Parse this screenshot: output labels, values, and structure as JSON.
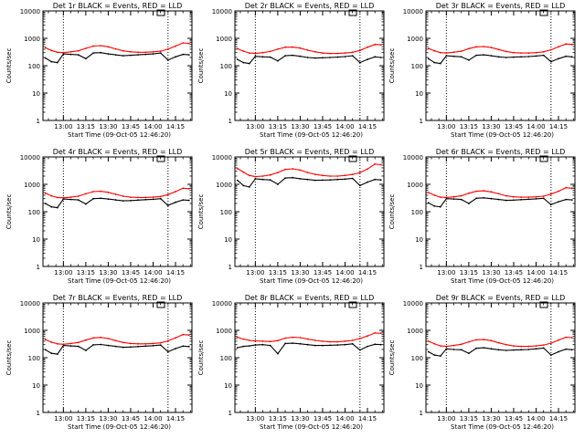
{
  "colors": {
    "background": "#ffffff",
    "events": "#000000",
    "lld": "#ff0000",
    "axes": "#000000"
  },
  "chart_data": [
    {
      "type": "line",
      "title": "Det 1r BLACK = Events, RED = LLD",
      "xlabel": "Start Time (09-Oct-05 12:46:20)",
      "ylabel": "Counts/sec",
      "x_ticks": [
        "13:00",
        "13:15",
        "13:30",
        "13:45",
        "14:00",
        "14:15"
      ],
      "y_ticks": [
        "1",
        "10",
        "100",
        "1000",
        "10000"
      ],
      "y_scale": "log",
      "ylim": [
        1,
        10000
      ],
      "xlim": [
        "12:46:20",
        "14:26:00"
      ],
      "dotted_vlines": [
        "13:00",
        "14:10"
      ],
      "x": [
        "12:48",
        "12:52",
        "12:56",
        "13:00",
        "13:05",
        "13:10",
        "13:15",
        "13:20",
        "13:25",
        "13:30",
        "13:35",
        "13:40",
        "13:45",
        "13:50",
        "13:55",
        "14:00",
        "14:05",
        "14:10",
        "14:15",
        "14:20",
        "14:24"
      ],
      "series": [
        {
          "name": "LLD",
          "values": [
            450,
            360,
            310,
            300,
            320,
            350,
            430,
            520,
            540,
            490,
            410,
            350,
            320,
            310,
            310,
            320,
            340,
            400,
            520,
            680,
            650
          ]
        },
        {
          "name": "Events",
          "values": [
            190,
            140,
            130,
            270,
            260,
            250,
            180,
            290,
            300,
            270,
            250,
            230,
            240,
            250,
            260,
            270,
            290,
            160,
            210,
            260,
            250
          ]
        }
      ]
    },
    {
      "type": "line",
      "title": "Det 2r BLACK = Events, RED = LLD",
      "xlabel": "Start Time (09-Oct-05 12:46:20)",
      "ylabel": "Counts/sec",
      "x_ticks": [
        "13:00",
        "13:15",
        "13:30",
        "13:45",
        "14:00",
        "14:15"
      ],
      "y_ticks": [
        "1",
        "10",
        "100",
        "1000",
        "10000"
      ],
      "y_scale": "log",
      "ylim": [
        1,
        10000
      ],
      "xlim": [
        "12:46:20",
        "14:26:00"
      ],
      "dotted_vlines": [
        "13:00",
        "14:10"
      ],
      "x": [
        "12:48",
        "12:52",
        "12:56",
        "13:00",
        "13:05",
        "13:10",
        "13:15",
        "13:20",
        "13:25",
        "13:30",
        "13:35",
        "13:40",
        "13:45",
        "13:50",
        "13:55",
        "14:00",
        "14:05",
        "14:10",
        "14:15",
        "14:20",
        "14:24"
      ],
      "series": [
        {
          "name": "LLD",
          "values": [
            420,
            340,
            290,
            280,
            300,
            330,
            400,
            470,
            480,
            440,
            370,
            320,
            290,
            280,
            280,
            290,
            310,
            360,
            470,
            600,
            580
          ]
        },
        {
          "name": "Events",
          "values": [
            170,
            130,
            120,
            220,
            210,
            205,
            150,
            230,
            240,
            220,
            200,
            190,
            195,
            200,
            205,
            215,
            230,
            130,
            170,
            210,
            200
          ]
        }
      ]
    },
    {
      "type": "line",
      "title": "Det 3r BLACK = Events, RED = LLD",
      "xlabel": "Start Time (09-Oct-05 12:46:20)",
      "ylabel": "Counts/sec",
      "x_ticks": [
        "13:00",
        "13:15",
        "13:30",
        "13:45",
        "14:00",
        "14:15"
      ],
      "y_ticks": [
        "1",
        "10",
        "100",
        "1000",
        "10000"
      ],
      "y_scale": "log",
      "ylim": [
        1,
        10000
      ],
      "xlim": [
        "12:46:20",
        "14:26:00"
      ],
      "dotted_vlines": [
        "13:00",
        "14:10"
      ],
      "x": [
        "12:48",
        "12:52",
        "12:56",
        "13:00",
        "13:05",
        "13:10",
        "13:15",
        "13:20",
        "13:25",
        "13:30",
        "13:35",
        "13:40",
        "13:45",
        "13:50",
        "13:55",
        "14:00",
        "14:05",
        "14:10",
        "14:15",
        "14:20",
        "14:24"
      ],
      "series": [
        {
          "name": "LLD",
          "values": [
            430,
            350,
            300,
            290,
            310,
            340,
            420,
            490,
            500,
            460,
            390,
            330,
            300,
            290,
            290,
            300,
            320,
            380,
            490,
            620,
            600
          ]
        },
        {
          "name": "Events",
          "values": [
            180,
            130,
            120,
            230,
            220,
            210,
            160,
            240,
            250,
            230,
            210,
            200,
            205,
            210,
            215,
            225,
            240,
            140,
            180,
            220,
            210
          ]
        }
      ]
    },
    {
      "type": "line",
      "title": "Det 4r BLACK = Events, RED = LLD",
      "xlabel": "Start Time (09-Oct-05 12:46:20)",
      "ylabel": "Counts/sec",
      "x_ticks": [
        "13:00",
        "13:15",
        "13:30",
        "13:45",
        "14:00",
        "14:15"
      ],
      "y_ticks": [
        "1",
        "10",
        "100",
        "1000",
        "10000"
      ],
      "y_scale": "log",
      "ylim": [
        1,
        10000
      ],
      "xlim": [
        "12:46:20",
        "14:26:00"
      ],
      "dotted_vlines": [
        "13:00",
        "14:10"
      ],
      "x": [
        "12:48",
        "12:52",
        "12:56",
        "13:00",
        "13:05",
        "13:10",
        "13:15",
        "13:20",
        "13:25",
        "13:30",
        "13:35",
        "13:40",
        "13:45",
        "13:50",
        "13:55",
        "14:00",
        "14:05",
        "14:10",
        "14:15",
        "14:20",
        "14:24"
      ],
      "series": [
        {
          "name": "LLD",
          "values": [
            470,
            380,
            330,
            320,
            340,
            370,
            450,
            540,
            560,
            510,
            430,
            370,
            340,
            330,
            330,
            340,
            360,
            420,
            540,
            720,
            690
          ]
        },
        {
          "name": "Events",
          "values": [
            200,
            150,
            140,
            290,
            280,
            270,
            190,
            300,
            310,
            290,
            270,
            250,
            255,
            265,
            275,
            285,
            300,
            170,
            220,
            270,
            260
          ]
        }
      ]
    },
    {
      "type": "line",
      "title": "Det 5r BLACK = Events, RED = LLD",
      "xlabel": "Start Time (09-Oct-05 12:46:20)",
      "ylabel": "Counts/sec",
      "x_ticks": [
        "13:00",
        "13:15",
        "13:30",
        "13:45",
        "14:00",
        "14:15"
      ],
      "y_ticks": [
        "1",
        "10",
        "100",
        "1000",
        "10000"
      ],
      "y_scale": "log",
      "ylim": [
        1,
        10000
      ],
      "xlim": [
        "12:46:20",
        "14:26:00"
      ],
      "dotted_vlines": [
        "13:00",
        "14:10"
      ],
      "x": [
        "12:48",
        "12:52",
        "12:56",
        "13:00",
        "13:05",
        "13:10",
        "13:15",
        "13:20",
        "13:25",
        "13:30",
        "13:35",
        "13:40",
        "13:45",
        "13:50",
        "13:55",
        "14:00",
        "14:05",
        "14:10",
        "14:15",
        "14:20",
        "14:24"
      ],
      "series": [
        {
          "name": "LLD",
          "values": [
            3800,
            2800,
            2100,
            1900,
            2000,
            2200,
            2700,
            3500,
            3700,
            3300,
            2700,
            2300,
            2100,
            2000,
            2000,
            2100,
            2300,
            2700,
            3600,
            5500,
            5200
          ]
        },
        {
          "name": "Events",
          "values": [
            1400,
            900,
            800,
            1600,
            1500,
            1450,
            1000,
            1700,
            1750,
            1600,
            1500,
            1400,
            1420,
            1450,
            1500,
            1550,
            1650,
            900,
            1200,
            1500,
            1450
          ]
        }
      ]
    },
    {
      "type": "line",
      "title": "Det 6r BLACK = Events, RED = LLD",
      "xlabel": "Start Time (09-Oct-05 12:46:20)",
      "ylabel": "Counts/sec",
      "x_ticks": [
        "13:00",
        "13:15",
        "13:30",
        "13:45",
        "14:00",
        "14:15"
      ],
      "y_ticks": [
        "1",
        "10",
        "100",
        "1000",
        "10000"
      ],
      "y_scale": "log",
      "ylim": [
        1,
        10000
      ],
      "xlim": [
        "12:46:20",
        "14:26:00"
      ],
      "dotted_vlines": [
        "13:00",
        "14:10"
      ],
      "x": [
        "12:48",
        "12:52",
        "12:56",
        "13:00",
        "13:05",
        "13:10",
        "13:15",
        "13:20",
        "13:25",
        "13:30",
        "13:35",
        "13:40",
        "13:45",
        "13:50",
        "13:55",
        "14:00",
        "14:05",
        "14:10",
        "14:15",
        "14:20",
        "14:24"
      ],
      "series": [
        {
          "name": "LLD",
          "values": [
            500,
            400,
            340,
            330,
            350,
            380,
            470,
            560,
            580,
            530,
            450,
            380,
            350,
            340,
            340,
            350,
            370,
            440,
            560,
            750,
            720
          ]
        },
        {
          "name": "Events",
          "values": [
            210,
            160,
            150,
            300,
            290,
            280,
            200,
            310,
            320,
            300,
            280,
            260,
            265,
            275,
            285,
            295,
            310,
            180,
            230,
            280,
            270
          ]
        }
      ]
    },
    {
      "type": "line",
      "title": "Det 7r BLACK = Events, RED = LLD",
      "xlabel": "Start Time (09-Oct-05 12:46:20)",
      "ylabel": "Counts/sec",
      "x_ticks": [
        "13:00",
        "13:15",
        "13:30",
        "13:45",
        "14:00",
        "14:15"
      ],
      "y_ticks": [
        "1",
        "10",
        "100",
        "1000",
        "10000"
      ],
      "y_scale": "log",
      "ylim": [
        1,
        10000
      ],
      "xlim": [
        "12:46:20",
        "14:26:00"
      ],
      "dotted_vlines": [
        "13:00",
        "14:10"
      ],
      "x": [
        "12:48",
        "12:52",
        "12:56",
        "13:00",
        "13:05",
        "13:10",
        "13:15",
        "13:20",
        "13:25",
        "13:30",
        "13:35",
        "13:40",
        "13:45",
        "13:50",
        "13:55",
        "14:00",
        "14:05",
        "14:10",
        "14:15",
        "14:20",
        "14:24"
      ],
      "series": [
        {
          "name": "LLD",
          "values": [
            460,
            370,
            320,
            310,
            330,
            360,
            440,
            530,
            550,
            500,
            420,
            360,
            330,
            320,
            320,
            330,
            350,
            410,
            530,
            700,
            670
          ]
        },
        {
          "name": "Events",
          "values": [
            195,
            145,
            135,
            280,
            270,
            260,
            185,
            295,
            305,
            280,
            260,
            240,
            245,
            255,
            265,
            275,
            290,
            165,
            215,
            265,
            255
          ]
        }
      ]
    },
    {
      "type": "line",
      "title": "Det 8r BLACK = Events, RED = LLD",
      "xlabel": "Start Time (09-Oct-05 12:46:20)",
      "ylabel": "Counts/sec",
      "x_ticks": [
        "13:00",
        "13:15",
        "13:30",
        "13:45",
        "14:00",
        "14:15"
      ],
      "y_ticks": [
        "1",
        "10",
        "100",
        "1000",
        "10000"
      ],
      "y_scale": "log",
      "ylim": [
        1,
        10000
      ],
      "xlim": [
        "12:46:20",
        "14:26:00"
      ],
      "dotted_vlines": [
        "13:00",
        "14:10"
      ],
      "x": [
        "12:48",
        "12:52",
        "12:56",
        "13:00",
        "13:05",
        "13:10",
        "13:15",
        "13:20",
        "13:25",
        "13:30",
        "13:35",
        "13:40",
        "13:45",
        "13:50",
        "13:55",
        "14:00",
        "14:05",
        "14:10",
        "14:15",
        "14:20",
        "14:24"
      ],
      "series": [
        {
          "name": "LLD",
          "values": [
            560,
            480,
            430,
            410,
            400,
            390,
            420,
            520,
            560,
            540,
            480,
            430,
            400,
            380,
            380,
            400,
            430,
            500,
            620,
            800,
            780
          ]
        },
        {
          "name": "Events",
          "values": [
            230,
            260,
            270,
            290,
            300,
            280,
            140,
            330,
            340,
            320,
            300,
            280,
            280,
            285,
            290,
            300,
            320,
            190,
            260,
            310,
            300
          ]
        }
      ]
    },
    {
      "type": "line",
      "title": "Det 9r BLACK = Events, RED = LLD",
      "xlabel": "Start Time (09-Oct-05 12:46:20)",
      "ylabel": "Counts/sec",
      "x_ticks": [
        "13:00",
        "13:15",
        "13:30",
        "13:45",
        "14:00",
        "14:15"
      ],
      "y_ticks": [
        "1",
        "10",
        "100",
        "1000",
        "10000"
      ],
      "y_scale": "log",
      "ylim": [
        1,
        10000
      ],
      "xlim": [
        "12:46:20",
        "14:26:00"
      ],
      "dotted_vlines": [
        "13:00",
        "14:10"
      ],
      "x": [
        "12:48",
        "12:52",
        "12:56",
        "13:00",
        "13:05",
        "13:10",
        "13:15",
        "13:20",
        "13:25",
        "13:30",
        "13:35",
        "13:40",
        "13:45",
        "13:50",
        "13:55",
        "14:00",
        "14:05",
        "14:10",
        "14:15",
        "14:20",
        "14:24"
      ],
      "series": [
        {
          "name": "LLD",
          "values": [
            400,
            320,
            270,
            260,
            280,
            310,
            380,
            450,
            460,
            420,
            350,
            300,
            270,
            260,
            260,
            270,
            290,
            340,
            440,
            560,
            540
          ]
        },
        {
          "name": "Events",
          "values": [
            165,
            125,
            115,
            210,
            200,
            195,
            145,
            220,
            230,
            210,
            195,
            185,
            190,
            195,
            200,
            210,
            225,
            125,
            165,
            205,
            195
          ]
        }
      ]
    }
  ]
}
